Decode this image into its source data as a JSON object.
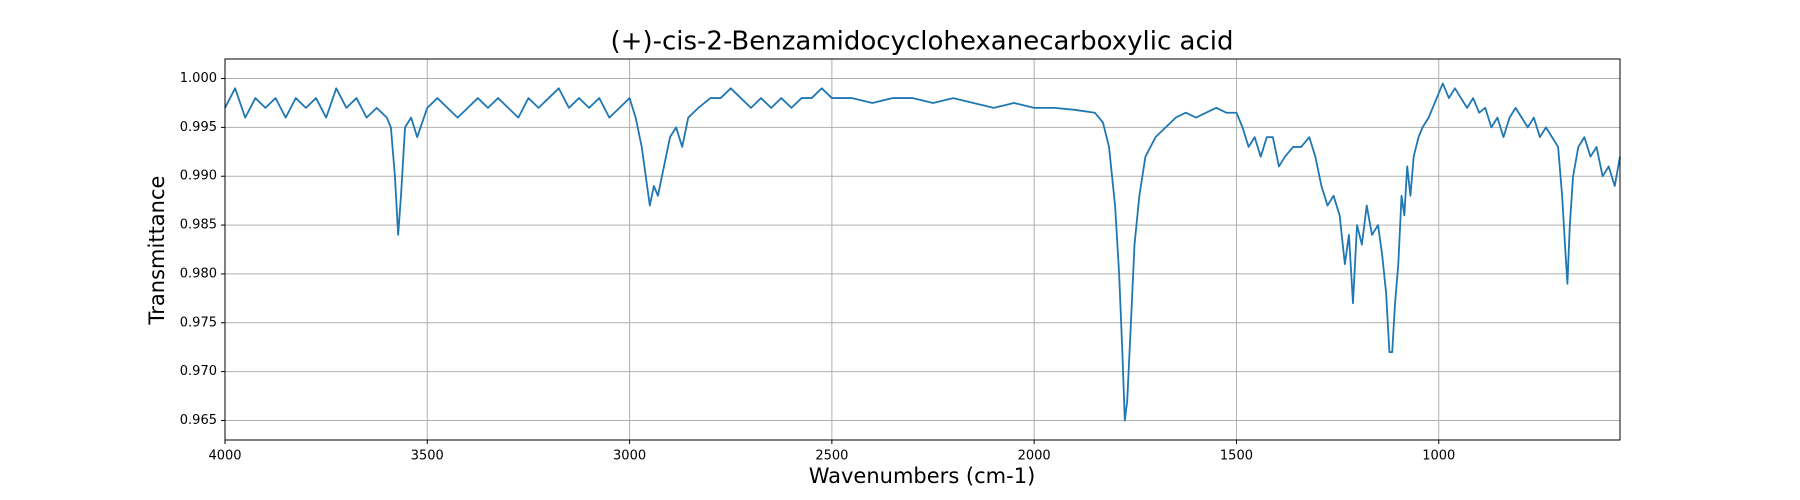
{
  "chart_data": {
    "type": "line",
    "title": "(+)-cis-2-Benzamidocyclohexanecarboxylic acid",
    "x_label": "Wavenumbers (cm-1)",
    "y_label": "Transmittance",
    "xlim": [
      4000,
      552
    ],
    "ylim": [
      0.963,
      1.002
    ],
    "xticks": [
      4000,
      3500,
      3000,
      2500,
      2000,
      1500,
      1000
    ],
    "yticks": [
      0.965,
      {
        "value": 0.97,
        "label": "0.970"
      },
      0.975,
      {
        "value": 0.98,
        "label": "0.980"
      },
      0.985,
      {
        "value": 0.99,
        "label": "0.990"
      },
      0.995,
      {
        "value": 1.0,
        "label": "1.000"
      }
    ],
    "grid": true,
    "x": [
      4000,
      3975,
      3950,
      3925,
      3900,
      3875,
      3850,
      3825,
      3800,
      3775,
      3750,
      3725,
      3700,
      3675,
      3650,
      3625,
      3600,
      3590,
      3580,
      3572,
      3565,
      3555,
      3540,
      3525,
      3500,
      3475,
      3450,
      3425,
      3400,
      3375,
      3350,
      3325,
      3300,
      3275,
      3250,
      3225,
      3200,
      3175,
      3150,
      3125,
      3100,
      3075,
      3050,
      3025,
      3000,
      2985,
      2970,
      2960,
      2950,
      2940,
      2930,
      2915,
      2900,
      2885,
      2870,
      2855,
      2830,
      2800,
      2775,
      2750,
      2725,
      2700,
      2675,
      2650,
      2625,
      2600,
      2575,
      2550,
      2525,
      2500,
      2450,
      2400,
      2350,
      2300,
      2250,
      2200,
      2150,
      2100,
      2050,
      2000,
      1950,
      1900,
      1850,
      1830,
      1815,
      1800,
      1790,
      1782,
      1776,
      1770,
      1762,
      1752,
      1740,
      1725,
      1700,
      1675,
      1650,
      1625,
      1600,
      1575,
      1550,
      1525,
      1500,
      1485,
      1470,
      1455,
      1440,
      1425,
      1410,
      1395,
      1380,
      1360,
      1340,
      1320,
      1305,
      1290,
      1275,
      1260,
      1245,
      1232,
      1222,
      1212,
      1202,
      1190,
      1178,
      1165,
      1150,
      1140,
      1130,
      1122,
      1115,
      1108,
      1100,
      1092,
      1085,
      1078,
      1070,
      1062,
      1050,
      1040,
      1025,
      1015,
      1000,
      990,
      975,
      960,
      945,
      930,
      915,
      900,
      885,
      870,
      855,
      840,
      825,
      810,
      795,
      780,
      765,
      750,
      735,
      720,
      705,
      695,
      688,
      682,
      676,
      668,
      655,
      640,
      625,
      610,
      595,
      580,
      565,
      552
    ],
    "series": [
      {
        "name": "Transmittance",
        "color": "#1f77b4",
        "values": [
          0.997,
          0.999,
          0.996,
          0.998,
          0.997,
          0.998,
          0.996,
          0.998,
          0.997,
          0.998,
          0.996,
          0.999,
          0.997,
          0.998,
          0.996,
          0.997,
          0.996,
          0.995,
          0.99,
          0.984,
          0.988,
          0.995,
          0.996,
          0.994,
          0.997,
          0.998,
          0.997,
          0.996,
          0.997,
          0.998,
          0.997,
          0.998,
          0.997,
          0.996,
          0.998,
          0.997,
          0.998,
          0.999,
          0.997,
          0.998,
          0.997,
          0.998,
          0.996,
          0.997,
          0.998,
          0.996,
          0.993,
          0.99,
          0.987,
          0.989,
          0.988,
          0.991,
          0.994,
          0.995,
          0.993,
          0.996,
          0.997,
          0.998,
          0.998,
          0.999,
          0.998,
          0.997,
          0.998,
          0.997,
          0.998,
          0.997,
          0.998,
          0.998,
          0.999,
          0.998,
          0.998,
          0.9975,
          0.998,
          0.998,
          0.9975,
          0.998,
          0.9975,
          0.997,
          0.9975,
          0.997,
          0.997,
          0.9968,
          0.9965,
          0.9955,
          0.993,
          0.987,
          0.98,
          0.972,
          0.965,
          0.967,
          0.974,
          0.983,
          0.988,
          0.992,
          0.994,
          0.995,
          0.996,
          0.9965,
          0.996,
          0.9965,
          0.997,
          0.9965,
          0.9965,
          0.995,
          0.993,
          0.994,
          0.992,
          0.994,
          0.994,
          0.991,
          0.992,
          0.993,
          0.993,
          0.994,
          0.992,
          0.989,
          0.987,
          0.988,
          0.986,
          0.981,
          0.984,
          0.977,
          0.985,
          0.983,
          0.987,
          0.984,
          0.985,
          0.982,
          0.978,
          0.972,
          0.972,
          0.977,
          0.981,
          0.988,
          0.986,
          0.991,
          0.988,
          0.992,
          0.994,
          0.995,
          0.996,
          0.997,
          0.9985,
          0.9995,
          0.998,
          0.999,
          0.998,
          0.997,
          0.998,
          0.9965,
          0.997,
          0.995,
          0.996,
          0.994,
          0.996,
          0.997,
          0.996,
          0.995,
          0.996,
          0.994,
          0.995,
          0.994,
          0.993,
          0.988,
          0.983,
          0.979,
          0.985,
          0.99,
          0.993,
          0.994,
          0.992,
          0.993,
          0.99,
          0.991,
          0.989,
          0.992
        ]
      }
    ]
  }
}
